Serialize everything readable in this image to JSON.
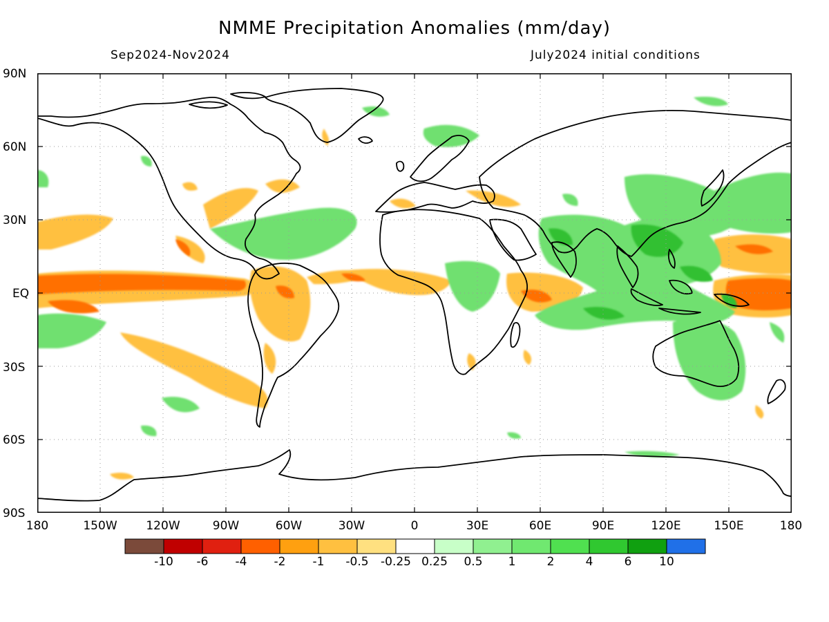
{
  "title": "NMME Precipitation Anomalies (mm/day)",
  "period": "Sep2024-Nov2024",
  "init": "July2024 initial conditions",
  "lat_labels": [
    "90N",
    "60N",
    "30N",
    "EQ",
    "30S",
    "60S",
    "90S"
  ],
  "lon_labels": [
    "180",
    "150W",
    "120W",
    "90W",
    "60W",
    "30W",
    "0",
    "30E",
    "60E",
    "90E",
    "120E",
    "150E",
    "180"
  ],
  "colorbar": {
    "colors": [
      "#7b4a3a",
      "#c00000",
      "#e02010",
      "#ff6000",
      "#ffa010",
      "#ffc040",
      "#ffe080",
      "#ffffff",
      "#c8ffc8",
      "#90f090",
      "#70e870",
      "#50e050",
      "#30c830",
      "#10a010",
      "#2070e8"
    ],
    "labels": [
      "-10",
      "-6",
      "-4",
      "-2",
      "-1",
      "-0.5",
      "-0.25",
      "0.25",
      "0.5",
      "1",
      "2",
      "4",
      "6",
      "10"
    ]
  },
  "map": {
    "dry_color": "#ffc040",
    "drier_color": "#ff7000",
    "wet_color": "#70e070",
    "wetter_color": "#30c030"
  }
}
